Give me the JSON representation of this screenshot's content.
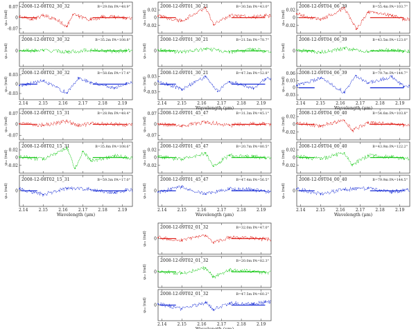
{
  "colors": {
    "red": "#e0201a",
    "green": "#19c919",
    "blue": "#1a2fd6",
    "frame": "#333333"
  },
  "chart_data": {
    "type": "line",
    "title": "Spectro-astrometric / differential phase residuals per epoch",
    "xlabel": "Wavelength (μm)",
    "xticks": [
      "2.14",
      "2.15",
      "2.16",
      "2.17",
      "2.18",
      "2.19"
    ],
    "groups": [
      {
        "xlabel": "",
        "panels": [
          {
            "color": "red",
            "label": "2008-12-08T02_30_32",
            "info": "B=29.0m  PA=48.9°",
            "ylabel": "φ₂₃ (rad)",
            "yticks": [
              "0.07",
              "0",
              "-0.07"
            ],
            "ylim": [
              -0.1,
              0.1
            ],
            "x": [
              2.138,
              2.144,
              2.15,
              2.156,
              2.162,
              2.165,
              2.168,
              2.174,
              2.18,
              2.186,
              2.192
            ],
            "y": [
              0.005,
              -0.01,
              0.012,
              -0.008,
              -0.055,
              0.02,
              0.008,
              -0.012,
              0.004,
              0.006,
              -0.004
            ]
          },
          {
            "color": "green",
            "label": "2008-12-08T02_30_32",
            "info": "B=35.2m  PA=108.8°",
            "ylabel": "φ₁₂ (rad)",
            "yticks": [
              "0"
            ],
            "ylim": [
              -0.1,
              0.1
            ],
            "x": [
              2.138,
              2.15,
              2.162,
              2.174,
              2.186,
              2.192
            ],
            "y": [
              0.0,
              0.004,
              -0.006,
              0.005,
              -0.003,
              0.002
            ]
          },
          {
            "color": "blue",
            "label": "2008-12-08T02_30_32",
            "info": "B=58.6m  PA=17.4°",
            "ylabel": "φ₁₃ (rad)",
            "yticks": [
              "0.03",
              "0",
              "-0.03"
            ],
            "ylim": [
              -0.05,
              0.05
            ],
            "x": [
              2.138,
              2.15,
              2.162,
              2.168,
              2.174,
              2.186,
              2.192
            ],
            "y": [
              -0.004,
              0.01,
              -0.028,
              0.02,
              0.006,
              -0.012,
              0.004
            ]
          }
        ]
      },
      {
        "xlabel": "Wavelength (μm)",
        "panels": [
          {
            "color": "red",
            "label": "2008-12-09T01_30_21",
            "info": "B=30.5m  PA=43.0°",
            "ylabel": "φ₂₃ (rad)",
            "yticks": [
              "0.02",
              "0",
              "-0.02"
            ],
            "ylim": [
              -0.04,
              0.04
            ],
            "x": [
              2.138,
              2.15,
              2.162,
              2.166,
              2.174,
              2.186,
              2.192
            ],
            "y": [
              0.004,
              -0.008,
              0.026,
              -0.018,
              0.006,
              0.002,
              0.005
            ]
          },
          {
            "color": "green",
            "label": "2008-12-09T01_30_21",
            "info": "B=21.5m  PA=78.7°",
            "ylabel": "φ₁₂ (rad)",
            "yticks": [
              "0"
            ],
            "ylim": [
              -0.06,
              0.06
            ],
            "x": [
              2.138,
              2.15,
              2.162,
              2.174,
              2.186,
              2.192
            ],
            "y": [
              0.004,
              -0.006,
              0.008,
              -0.004,
              0.006,
              -0.002
            ]
          },
          {
            "color": "blue",
            "label": "2008-12-09T01_30_21",
            "info": "B=47.3m  PA=52.8°",
            "ylabel": "φ₁₃ (rad)",
            "yticks": [
              "0.03",
              "0",
              "-0.03"
            ],
            "ylim": [
              -0.06,
              0.06
            ],
            "x": [
              2.138,
              2.15,
              2.162,
              2.168,
              2.174,
              2.186,
              2.192
            ],
            "y": [
              0.012,
              -0.02,
              0.03,
              -0.028,
              0.01,
              -0.016,
              0.02
            ]
          }
        ]
      },
      {
        "xlabel": "Wavelength (μm)",
        "panels": [
          {
            "color": "red",
            "label": "2008-12-09T04_06_39",
            "info": "B=55.4m  PA=103.7°",
            "ylabel": "φ₂₃ (rad)",
            "yticks": [
              "0.02",
              "0",
              "-0.02"
            ],
            "ylim": [
              -0.04,
              0.04
            ],
            "x": [
              2.138,
              2.15,
              2.162,
              2.168,
              2.174,
              2.186,
              2.192
            ],
            "y": [
              0.01,
              -0.006,
              0.026,
              -0.03,
              0.014,
              0.005,
              -0.004
            ]
          },
          {
            "color": "green",
            "label": "2008-12-09T04_06_39",
            "info": "B=43.5m  PA=123.0°",
            "ylabel": "φ₁₂ (rad)",
            "yticks": [
              "0"
            ],
            "ylim": [
              -0.06,
              0.06
            ],
            "x": [
              2.138,
              2.15,
              2.162,
              2.174,
              2.186,
              2.192
            ],
            "y": [
              0.004,
              -0.006,
              0.01,
              -0.004,
              0.005,
              -0.002
            ]
          },
          {
            "color": "blue",
            "label": "2008-12-09T04_06_39",
            "info": "B=79.7m  PA=144.7°",
            "ylabel": "φ₁₃ (rad)",
            "yticks": [
              "0.06",
              "0.03",
              "0",
              "-0.03"
            ],
            "ylim": [
              -0.05,
              0.08
            ],
            "x": [
              2.138,
              2.15,
              2.162,
              2.168,
              2.174,
              2.186,
              2.192
            ],
            "y": [
              0.01,
              0.04,
              -0.02,
              0.05,
              0.02,
              0.045,
              0.005
            ]
          }
        ]
      },
      {
        "xlabel": "Wavelength (μm)",
        "panels": [
          {
            "color": "red",
            "label": "2008-12-08T02_15_31",
            "info": "B=28.9m  PA=48.4°",
            "ylabel": "φ₂₃ (rad)",
            "yticks": [
              "0.07",
              "0",
              "-0.07"
            ],
            "ylim": [
              -0.1,
              0.1
            ],
            "x": [
              2.138,
              2.15,
              2.162,
              2.168,
              2.174,
              2.186,
              2.192
            ],
            "y": [
              0.004,
              -0.006,
              0.02,
              -0.01,
              0.006,
              0.002,
              -0.004
            ]
          },
          {
            "color": "green",
            "label": "2008-12-08T02_15_31",
            "info": "B=35.8m  PA=108.6°",
            "ylabel": "φ₁₂ (rad)",
            "yticks": [
              "0.02",
              "0",
              "-0.02"
            ],
            "ylim": [
              -0.04,
              0.04
            ],
            "x": [
              2.138,
              2.15,
              2.162,
              2.166,
              2.17,
              2.174,
              2.186,
              2.192
            ],
            "y": [
              0.002,
              -0.004,
              0.024,
              -0.028,
              0.016,
              -0.008,
              0.004,
              0.0
            ]
          },
          {
            "color": "blue",
            "label": "2008-12-08T02_15_31",
            "info": "B=59.3m  PA=17.0°",
            "ylabel": "φ₁₃ (rad)",
            "yticks": [
              "0"
            ],
            "ylim": [
              -0.05,
              0.05
            ],
            "x": [
              2.138,
              2.15,
              2.162,
              2.174,
              2.186,
              2.192
            ],
            "y": [
              0.006,
              -0.012,
              0.008,
              0.004,
              -0.006,
              0.002
            ]
          }
        ]
      },
      {
        "xlabel": "Wavelength (μm)",
        "panels": [
          {
            "color": "red",
            "label": "2008-12-09T01_45_47",
            "info": "B=31.3m  PA=45.1°",
            "ylabel": "φ₂₃ (rad)",
            "yticks": [
              "0.07",
              "0",
              "-0.07"
            ],
            "ylim": [
              -0.1,
              0.1
            ],
            "x": [
              2.138,
              2.15,
              2.162,
              2.174,
              2.186,
              2.192
            ],
            "y": [
              0.004,
              -0.008,
              0.014,
              -0.006,
              0.004,
              0.002
            ]
          },
          {
            "color": "green",
            "label": "2008-12-09T01_45_47",
            "info": "B=20.7m  PA=80.5°",
            "ylabel": "φ₁₂ (rad)",
            "yticks": [
              "0.02",
              "0",
              "-0.02"
            ],
            "ylim": [
              -0.04,
              0.04
            ],
            "x": [
              2.138,
              2.15,
              2.162,
              2.166,
              2.174,
              2.186,
              2.192
            ],
            "y": [
              0.002,
              -0.004,
              0.012,
              -0.022,
              0.006,
              0.003,
              -0.002
            ]
          },
          {
            "color": "blue",
            "label": "2008-12-09T01_45_47",
            "info": "B=47.4m  PA=56.5°",
            "ylabel": "φ₁₃ (rad)",
            "yticks": [
              "0"
            ],
            "ylim": [
              -0.05,
              0.05
            ],
            "x": [
              2.138,
              2.15,
              2.162,
              2.174,
              2.186,
              2.192
            ],
            "y": [
              -0.004,
              0.012,
              -0.01,
              0.006,
              0.004,
              -0.002
            ]
          }
        ]
      },
      {
        "xlabel": "Wavelength (μm)",
        "panels": [
          {
            "color": "red",
            "label": "2008-12-09T04_00_40",
            "info": "B=54.6m  PA=103.8°",
            "ylabel": "φ₂₃ (rad)",
            "yticks": [
              "0.02",
              "0",
              "-0.02"
            ],
            "ylim": [
              -0.04,
              0.04
            ],
            "x": [
              2.138,
              2.15,
              2.162,
              2.166,
              2.174,
              2.186,
              2.192
            ],
            "y": [
              0.002,
              -0.004,
              0.01,
              -0.016,
              0.004,
              0.002,
              -0.002
            ]
          },
          {
            "color": "green",
            "label": "2008-12-09T04_00_40",
            "info": "B=43.9m  PA=122.2°",
            "ylabel": "φ₁₂ (rad)",
            "yticks": [
              "0.02",
              "0",
              "-0.02"
            ],
            "ylim": [
              -0.04,
              0.04
            ],
            "x": [
              2.138,
              2.15,
              2.162,
              2.166,
              2.174,
              2.186,
              2.192
            ],
            "y": [
              0.003,
              -0.004,
              0.012,
              -0.018,
              0.005,
              0.002,
              -0.002
            ]
          },
          {
            "color": "blue",
            "label": "2008-12-09T04_00_40",
            "info": "B=79.9m  PA=144.5°",
            "ylabel": "φ₁₃ (rad)",
            "yticks": [
              "0"
            ],
            "ylim": [
              -0.05,
              0.05
            ],
            "x": [
              2.138,
              2.15,
              2.162,
              2.174,
              2.186,
              2.192
            ],
            "y": [
              0.006,
              -0.01,
              0.004,
              0.008,
              -0.004,
              0.002
            ]
          }
        ]
      },
      {
        "xlabel": "Wavelength (μm)",
        "panels": [
          {
            "color": "red",
            "label": "2008-12-09T02_01_32",
            "info": "B=32.0m  PA=47.0°",
            "ylabel": "φ₂₃ (rad)",
            "yticks": [
              "0"
            ],
            "ylim": [
              -0.05,
              0.05
            ],
            "x": [
              2.138,
              2.15,
              2.162,
              2.166,
              2.174,
              2.186,
              2.192
            ],
            "y": [
              0.003,
              -0.006,
              0.01,
              -0.014,
              0.004,
              0.002,
              -0.002
            ]
          },
          {
            "color": "green",
            "label": "2008-12-09T02_01_32",
            "info": "B=20.0m  PA=82.3°",
            "ylabel": "φ₁₂ (rad)",
            "yticks": [
              "0"
            ],
            "ylim": [
              -0.05,
              0.05
            ],
            "x": [
              2.138,
              2.15,
              2.162,
              2.166,
              2.174,
              2.186,
              2.192
            ],
            "y": [
              0.002,
              -0.004,
              0.012,
              -0.016,
              0.006,
              0.002,
              -0.002
            ]
          },
          {
            "color": "blue",
            "label": "2008-12-09T02_01_32",
            "info": "B=47.5m  PA=60.2°",
            "ylabel": "φ₁₃ (rad)",
            "yticks": [
              "0"
            ],
            "ylim": [
              -0.05,
              0.05
            ],
            "x": [
              2.138,
              2.15,
              2.162,
              2.166,
              2.174,
              2.186,
              2.192
            ],
            "y": [
              0.004,
              -0.012,
              0.008,
              -0.014,
              0.006,
              0.004,
              0.01
            ]
          }
        ]
      }
    ]
  }
}
